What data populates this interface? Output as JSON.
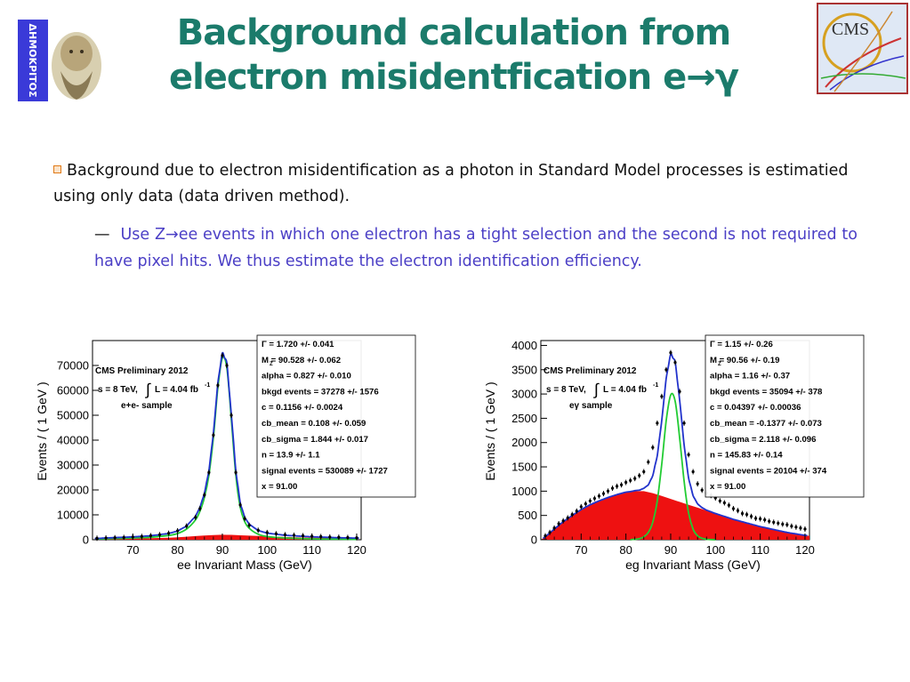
{
  "slide": {
    "title_line1": "Background calculation from",
    "title_line2": "electron misidentfication e→γ",
    "logo_left_text": "ΔΗΜΟΚΡΙΤΟΣ",
    "logo_right_text": "CMS",
    "bullet_text": "Background due to electron misidentification as a photon in Standard Model processes is estimatied using only data (data driven method).",
    "sub_dash": "—",
    "sub_text_pre": "Use Z",
    "sub_arrow": "→",
    "sub_text_post": "ee events in which one electron has a tight selection and the second is not required to have pixel hits. We thus estimate the electron identification efficiency."
  },
  "colors": {
    "title": "#1b7b6b",
    "sub_text": "#4b3fc6",
    "fit": "#2233cc",
    "signal": "#22cc33",
    "background": "#ee1111",
    "points": "#000000"
  },
  "chart_data": [
    {
      "type": "line",
      "xlabel": "ee Invariant Mass (GeV)",
      "ylabel": "Events / ( 1 GeV )",
      "xlim": [
        61,
        121
      ],
      "ylim": [
        0,
        80000
      ],
      "xticks": [
        70,
        80,
        90,
        100,
        110,
        120
      ],
      "yticks": [
        0,
        10000,
        20000,
        30000,
        40000,
        50000,
        60000,
        70000
      ],
      "grid": false,
      "legend": "CMS Preliminary 2012",
      "energy_label": "s = 8 TeV,",
      "lumi_label": "L = 4.04 fb",
      "lumi_exp": "-1",
      "sample_label": "e+e- sample",
      "params": [
        "Γ =  1.720 +/- 0.041",
        "M  =  90.528 +/- 0.062",
        "alpha =  0.827 +/- 0.010",
        "bkgd events =  37278 +/- 1576",
        "c =  0.1156 +/- 0.0024",
        "cb_mean =  0.108 +/- 0.059",
        "cb_sigma =  1.844 +/- 0.017",
        "n =  13.9 +/- 1.1",
        "signal events =  530089 +/- 1727",
        "x =  91.00"
      ],
      "params_sub": "Z",
      "x": [
        62,
        64,
        66,
        68,
        70,
        72,
        74,
        76,
        78,
        80,
        82,
        84,
        85,
        86,
        87,
        88,
        89,
        90,
        91,
        92,
        93,
        94,
        95,
        96,
        98,
        100,
        102,
        104,
        106,
        108,
        110,
        112,
        114,
        116,
        118,
        120
      ],
      "data": [
        600,
        700,
        800,
        900,
        1100,
        1300,
        1600,
        2000,
        2600,
        3600,
        5500,
        9000,
        12500,
        18000,
        27000,
        42000,
        62000,
        74000,
        70000,
        50000,
        27000,
        14000,
        8500,
        5800,
        3800,
        2900,
        2400,
        2000,
        1800,
        1600,
        1400,
        1250,
        1100,
        1000,
        900,
        800
      ],
      "series": [
        {
          "name": "signal",
          "x": [
            62,
            66,
            70,
            74,
            78,
            80,
            82,
            84,
            85,
            86,
            87,
            88,
            89,
            90,
            91,
            92,
            93,
            94,
            95,
            96,
            98,
            100,
            104,
            110,
            116,
            120
          ],
          "values": [
            300,
            500,
            700,
            1000,
            1700,
            2500,
            4300,
            8000,
            11500,
            17000,
            26000,
            41000,
            61000,
            73000,
            69000,
            48500,
            26000,
            13000,
            7300,
            4600,
            2200,
            1300,
            700,
            350,
            200,
            150
          ]
        },
        {
          "name": "background",
          "x": [
            62,
            66,
            70,
            74,
            78,
            80,
            82,
            84,
            86,
            88,
            90,
            92,
            94,
            96,
            98,
            100,
            104,
            108,
            112,
            116,
            120
          ],
          "values": [
            250,
            350,
            450,
            600,
            800,
            1000,
            1200,
            1450,
            1700,
            1900,
            2000,
            1950,
            1800,
            1650,
            1500,
            1350,
            1100,
            900,
            750,
            600,
            500
          ]
        }
      ]
    },
    {
      "type": "line",
      "xlabel": "eg Invariant Mass (GeV)",
      "ylabel": "Events / ( 1 GeV )",
      "xlim": [
        61,
        121
      ],
      "ylim": [
        0,
        4100
      ],
      "xticks": [
        70,
        80,
        90,
        100,
        110,
        120
      ],
      "yticks": [
        0,
        500,
        1000,
        1500,
        2000,
        2500,
        3000,
        3500,
        4000
      ],
      "grid": false,
      "legend": "CMS Preliminary 2012",
      "energy_label": "s = 8 TeV,",
      "lumi_label": "L = 4.04 fb",
      "lumi_exp": "-1",
      "sample_label": "eγ sample",
      "params": [
        "Γ =  1.15 +/- 0.26",
        "M  =  90.56 +/- 0.19",
        "alpha =  1.16 +/- 0.37",
        "bkgd events =  35094 +/- 378",
        "c =  0.04397 +/- 0.00036",
        "cb_mean =  -0.1377 +/- 0.073",
        "cb_sigma =  2.118 +/- 0.096",
        "n =  145.83 +/- 0.14",
        "signal events =  20104 +/- 374",
        "x =  91.00"
      ],
      "params_sub": "Z",
      "x": [
        62,
        63,
        64,
        65,
        66,
        67,
        68,
        69,
        70,
        71,
        72,
        73,
        74,
        75,
        76,
        77,
        78,
        79,
        80,
        81,
        82,
        83,
        84,
        85,
        86,
        87,
        88,
        89,
        90,
        91,
        92,
        93,
        94,
        95,
        96,
        97,
        98,
        99,
        100,
        101,
        102,
        103,
        104,
        105,
        106,
        107,
        108,
        109,
        110,
        111,
        112,
        113,
        114,
        115,
        116,
        117,
        118,
        119,
        120
      ],
      "data": [
        80,
        150,
        240,
        330,
        390,
        450,
        520,
        590,
        680,
        740,
        800,
        850,
        900,
        950,
        1000,
        1060,
        1100,
        1130,
        1180,
        1220,
        1260,
        1320,
        1400,
        1600,
        1900,
        2400,
        2950,
        3500,
        3850,
        3650,
        3050,
        2400,
        1750,
        1400,
        1150,
        1020,
        960,
        910,
        860,
        800,
        760,
        710,
        640,
        600,
        540,
        520,
        480,
        440,
        430,
        410,
        380,
        360,
        340,
        320,
        310,
        280,
        260,
        240,
        220
      ],
      "series": [
        {
          "name": "signal",
          "x": [
            81,
            82,
            83,
            84,
            85,
            86,
            87,
            88,
            89,
            90,
            91,
            92,
            93,
            94,
            95,
            96,
            97,
            98,
            99,
            100
          ],
          "values": [
            0,
            10,
            20,
            60,
            150,
            360,
            800,
            1550,
            2450,
            2980,
            2850,
            2100,
            1200,
            550,
            220,
            80,
            30,
            10,
            4,
            0
          ]
        },
        {
          "name": "background",
          "x": [
            61,
            62,
            64,
            66,
            68,
            70,
            72,
            74,
            76,
            78,
            80,
            82,
            84,
            86,
            88,
            90,
            92,
            94,
            96,
            98,
            100,
            102,
            104,
            106,
            108,
            110,
            112,
            114,
            116,
            118,
            120,
            121
          ],
          "values": [
            0,
            60,
            220,
            370,
            500,
            620,
            720,
            800,
            870,
            930,
            980,
            1000,
            1000,
            960,
            900,
            840,
            780,
            720,
            660,
            600,
            540,
            480,
            420,
            370,
            320,
            270,
            230,
            190,
            150,
            120,
            90,
            80
          ]
        }
      ]
    }
  ]
}
